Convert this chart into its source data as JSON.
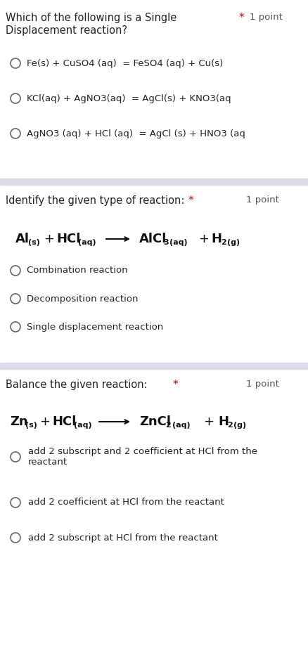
{
  "bg_color": "#ffffff",
  "separator_color": "#dcdce8",
  "text_color": "#222222",
  "subtext_color": "#555555",
  "star_color": "#cc0000",
  "circle_color": "#666666",
  "eq_color": "#111111",
  "section1": {
    "question_line1": "Which of the following is a Single",
    "question_line2": "Displacement reaction?",
    "point_label": "1 point",
    "options": [
      "Fe(s) + CuSO4 (aq)  = FeSO4 (aq) + Cu(s)",
      "KCl(aq) + AgNO3(aq)  = AgCl(s) + KNO3(aq",
      "AgNO3 (aq) + HCl (aq)  = AgCl (s) + HNO3 (aq"
    ]
  },
  "section2": {
    "question": "Identify the given type of reaction:",
    "point_label": "1 point",
    "options": [
      "Combination reaction",
      "Decomposition reaction",
      "Single displacement reaction"
    ]
  },
  "section3": {
    "question": "Balance the given reaction:",
    "point_label": "1 point",
    "options": [
      "add 2 subscript and 2 coefficient at HCl from the\nreactant",
      "add 2 coefficient at HCl from the reactant",
      "add 2 subscript at HCl from the reactant"
    ]
  }
}
